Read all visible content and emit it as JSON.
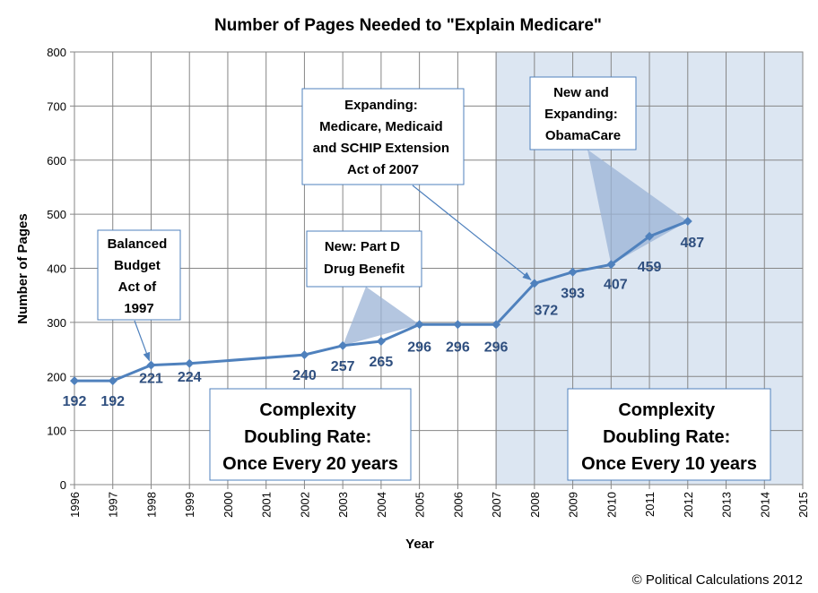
{
  "chart_data": {
    "type": "line",
    "title": "Number of Pages Needed to \"Explain Medicare\"",
    "xlabel": "Year",
    "ylabel": "Number of Pages",
    "xlim": [
      1996,
      2015
    ],
    "ylim": [
      0,
      800
    ],
    "x_ticks": [
      "1996",
      "1997",
      "1998",
      "1999",
      "2000",
      "2001",
      "2002",
      "2003",
      "2004",
      "2005",
      "2006",
      "2007",
      "2008",
      "2009",
      "2010",
      "2011",
      "2012",
      "2013",
      "2014",
      "2015"
    ],
    "y_ticks": [
      "0",
      "100",
      "200",
      "300",
      "400",
      "500",
      "600",
      "700",
      "800"
    ],
    "grid": true,
    "series": [
      {
        "x": [
          1996,
          1997,
          1998,
          1999,
          2002,
          2003,
          2004,
          2005,
          2006,
          2007,
          2008,
          2009,
          2010,
          2011,
          2012
        ],
        "values": [
          192,
          192,
          221,
          224,
          240,
          257,
          265,
          296,
          296,
          296,
          372,
          393,
          407,
          459,
          487
        ],
        "color": "#4F81BD"
      }
    ],
    "shaded_region": {
      "x_range": [
        2007,
        2015
      ],
      "color": "#DCE6F2"
    },
    "annotations": [
      {
        "lines": [
          "Balanced",
          "Budget",
          "Act of",
          "1997"
        ],
        "points_to": 1998
      },
      {
        "lines": [
          "New: Part D",
          "Drug Benefit"
        ],
        "points_to": 2003
      },
      {
        "lines": [
          "Expanding:",
          "Medicare, Medicaid",
          "and SCHIP Extension",
          "Act of 2007"
        ],
        "points_to": 2008
      },
      {
        "lines": [
          "New and",
          "Expanding:",
          "ObamaCare"
        ],
        "points_to": 2010
      }
    ],
    "text_boxes": [
      {
        "lines": [
          "Complexity",
          "Doubling Rate:",
          "Once Every 20 years"
        ]
      },
      {
        "lines": [
          "Complexity",
          "Doubling Rate:",
          "Once Every 10 years"
        ]
      }
    ]
  },
  "credit": "© Political Calculations 2012"
}
